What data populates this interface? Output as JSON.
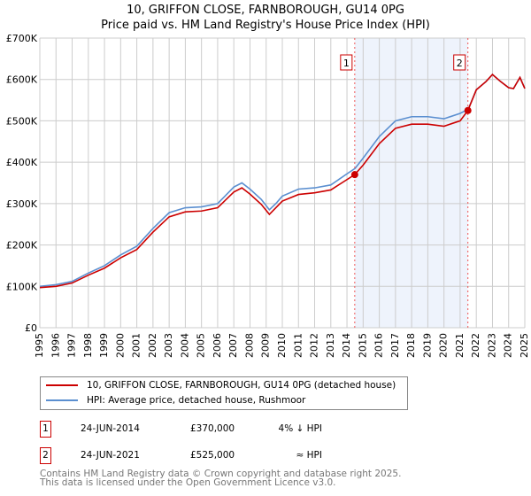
{
  "title": "10, GRIFFON CLOSE, FARNBOROUGH, GU14 0PG",
  "subtitle": "Price paid vs. HM Land Registry's House Price Index (HPI)",
  "chart_data": {
    "type": "line",
    "xlim": [
      1995,
      2025
    ],
    "ylim": [
      0,
      700000
    ],
    "x_ticks": [
      "1995",
      "1996",
      "1997",
      "1998",
      "1999",
      "2000",
      "2001",
      "2002",
      "2003",
      "2004",
      "2005",
      "2006",
      "2007",
      "2008",
      "2009",
      "2010",
      "2011",
      "2012",
      "2013",
      "2014",
      "2015",
      "2016",
      "2017",
      "2018",
      "2019",
      "2020",
      "2021",
      "2022",
      "2023",
      "2024",
      "2025"
    ],
    "y_ticks": [
      {
        "v": 0,
        "label": "£0"
      },
      {
        "v": 100000,
        "label": "£100K"
      },
      {
        "v": 200000,
        "label": "£200K"
      },
      {
        "v": 300000,
        "label": "£300K"
      },
      {
        "v": 400000,
        "label": "£400K"
      },
      {
        "v": 500000,
        "label": "£500K"
      },
      {
        "v": 600000,
        "label": "£600K"
      },
      {
        "v": 700000,
        "label": "£700K"
      }
    ],
    "grid": true,
    "series": [
      {
        "name": "HPI: Average price, detached house, Rushmoor",
        "color": "#5b8fd0",
        "x": [
          1995,
          1996,
          1997,
          1998,
          1999,
          2000,
          2001,
          2002,
          2003,
          2004,
          2005,
          2006,
          2007,
          2007.5,
          2008,
          2008.7,
          2009.2,
          2009.6,
          2010,
          2011,
          2012,
          2013,
          2014,
          2014.5,
          2015,
          2016,
          2017,
          2018,
          2019,
          2020,
          2021,
          2021.5,
          2022,
          2022.6,
          2023,
          2023.5,
          2024,
          2024.3,
          2024.7,
          2025
        ],
        "y": [
          100000,
          104000,
          112000,
          132000,
          150000,
          176000,
          197000,
          240000,
          278000,
          290000,
          292000,
          300000,
          340000,
          350000,
          335000,
          310000,
          285000,
          300000,
          318000,
          335000,
          338000,
          345000,
          372000,
          385000,
          410000,
          462000,
          500000,
          510000,
          510000,
          505000,
          518000,
          528000,
          575000,
          595000,
          612000,
          595000,
          580000,
          578000,
          605000,
          578000
        ]
      },
      {
        "name": "10, GRIFFON CLOSE, FARNBOROUGH, GU14 0PG (detached house)",
        "color": "#cc0000",
        "x": [
          1995,
          1996,
          1997,
          1998,
          1999,
          2000,
          2001,
          2002,
          2003,
          2004,
          2005,
          2006,
          2007,
          2007.5,
          2008,
          2008.7,
          2009.2,
          2009.6,
          2010,
          2011,
          2012,
          2013,
          2014,
          2014.48,
          2015,
          2016,
          2017,
          2018,
          2019,
          2020,
          2021,
          2021.48,
          2022,
          2022.6,
          2023,
          2023.5,
          2024,
          2024.3,
          2024.7,
          2025
        ],
        "y": [
          97000,
          100000,
          108000,
          127000,
          144000,
          169000,
          189000,
          231000,
          268000,
          280000,
          282000,
          290000,
          328000,
          338000,
          323000,
          298000,
          274000,
          290000,
          306000,
          322000,
          326000,
          333000,
          358000,
          370000,
          393000,
          445000,
          482000,
          492000,
          492000,
          487000,
          500000,
          525000,
          575000,
          595000,
          612000,
          595000,
          580000,
          578000,
          605000,
          578000
        ]
      }
    ],
    "annotations": [
      {
        "label": "1",
        "x": 2014.48,
        "y": 370000
      },
      {
        "label": "2",
        "x": 2021.48,
        "y": 525000
      }
    ]
  },
  "legend": {
    "property": "10, GRIFFON CLOSE, FARNBOROUGH, GU14 0PG (detached house)",
    "hpi": "HPI: Average price, detached house, Rushmoor"
  },
  "transactions": [
    {
      "n": "1",
      "date": "24-JUN-2014",
      "price": "£370,000",
      "rel": "4% ↓ HPI"
    },
    {
      "n": "2",
      "date": "24-JUN-2021",
      "price": "£525,000",
      "rel": "≈ HPI"
    }
  ],
  "footer": [
    "Contains HM Land Registry data © Crown copyright and database right 2025.",
    "This data is licensed under the Open Government Licence v3.0."
  ]
}
